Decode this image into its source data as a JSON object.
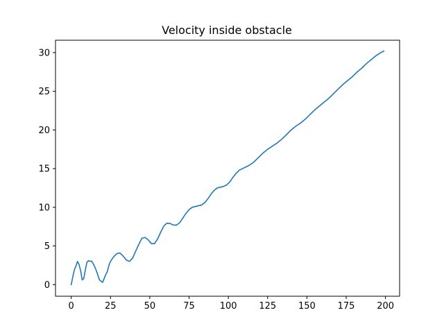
{
  "chart_data": {
    "type": "line",
    "title": "Velocity inside obstacle",
    "xlabel": "",
    "ylabel": "",
    "xlim": [
      -10,
      209
    ],
    "ylim": [
      -1.5,
      31.6
    ],
    "xticks": [
      0,
      25,
      50,
      75,
      100,
      125,
      150,
      175,
      200
    ],
    "yticks": [
      0,
      5,
      10,
      15,
      20,
      25,
      30
    ],
    "grid": false,
    "series": [
      {
        "color": "#1f77b4",
        "points": [
          [
            0,
            0.0
          ],
          [
            1,
            1.0
          ],
          [
            2,
            1.9
          ],
          [
            3,
            2.4
          ],
          [
            4,
            3.0
          ],
          [
            5,
            2.6
          ],
          [
            6,
            1.8
          ],
          [
            7,
            0.6
          ],
          [
            8,
            0.8
          ],
          [
            9,
            1.9
          ],
          [
            10,
            2.9
          ],
          [
            11,
            3.1
          ],
          [
            12,
            3.0
          ],
          [
            13,
            3.05
          ],
          [
            14,
            2.7
          ],
          [
            15,
            2.3
          ],
          [
            16,
            1.8
          ],
          [
            17,
            1.2
          ],
          [
            18,
            0.6
          ],
          [
            19,
            0.45
          ],
          [
            20,
            0.3
          ],
          [
            21,
            0.8
          ],
          [
            22,
            1.3
          ],
          [
            23,
            1.7
          ],
          [
            24,
            2.5
          ],
          [
            25,
            3.0
          ],
          [
            27,
            3.6
          ],
          [
            29,
            4.0
          ],
          [
            31,
            4.1
          ],
          [
            33,
            3.7
          ],
          [
            35,
            3.2
          ],
          [
            37,
            3.0
          ],
          [
            39,
            3.4
          ],
          [
            41,
            4.3
          ],
          [
            43,
            5.2
          ],
          [
            45,
            6.0
          ],
          [
            47,
            6.1
          ],
          [
            49,
            5.8
          ],
          [
            51,
            5.3
          ],
          [
            53,
            5.3
          ],
          [
            55,
            5.9
          ],
          [
            57,
            6.8
          ],
          [
            59,
            7.6
          ],
          [
            61,
            7.95
          ],
          [
            63,
            7.9
          ],
          [
            65,
            7.7
          ],
          [
            67,
            7.7
          ],
          [
            69,
            8.0
          ],
          [
            71,
            8.6
          ],
          [
            73,
            9.2
          ],
          [
            75,
            9.7
          ],
          [
            77,
            10.0
          ],
          [
            79,
            10.1
          ],
          [
            81,
            10.2
          ],
          [
            83,
            10.3
          ],
          [
            85,
            10.6
          ],
          [
            87,
            11.1
          ],
          [
            89,
            11.7
          ],
          [
            91,
            12.2
          ],
          [
            93,
            12.5
          ],
          [
            95,
            12.6
          ],
          [
            97,
            12.7
          ],
          [
            99,
            12.9
          ],
          [
            101,
            13.3
          ],
          [
            103,
            13.9
          ],
          [
            105,
            14.4
          ],
          [
            107,
            14.8
          ],
          [
            110,
            15.1
          ],
          [
            113,
            15.4
          ],
          [
            116,
            15.8
          ],
          [
            119,
            16.4
          ],
          [
            122,
            17.0
          ],
          [
            125,
            17.5
          ],
          [
            128,
            17.9
          ],
          [
            131,
            18.3
          ],
          [
            134,
            18.8
          ],
          [
            137,
            19.4
          ],
          [
            140,
            20.0
          ],
          [
            143,
            20.5
          ],
          [
            146,
            20.9
          ],
          [
            149,
            21.4
          ],
          [
            152,
            22.0
          ],
          [
            155,
            22.6
          ],
          [
            158,
            23.1
          ],
          [
            161,
            23.6
          ],
          [
            164,
            24.1
          ],
          [
            167,
            24.7
          ],
          [
            170,
            25.3
          ],
          [
            173,
            25.9
          ],
          [
            176,
            26.4
          ],
          [
            179,
            26.9
          ],
          [
            182,
            27.5
          ],
          [
            185,
            28.0
          ],
          [
            188,
            28.6
          ],
          [
            191,
            29.1
          ],
          [
            194,
            29.6
          ],
          [
            197,
            30.0
          ],
          [
            199,
            30.2
          ]
        ]
      }
    ]
  }
}
